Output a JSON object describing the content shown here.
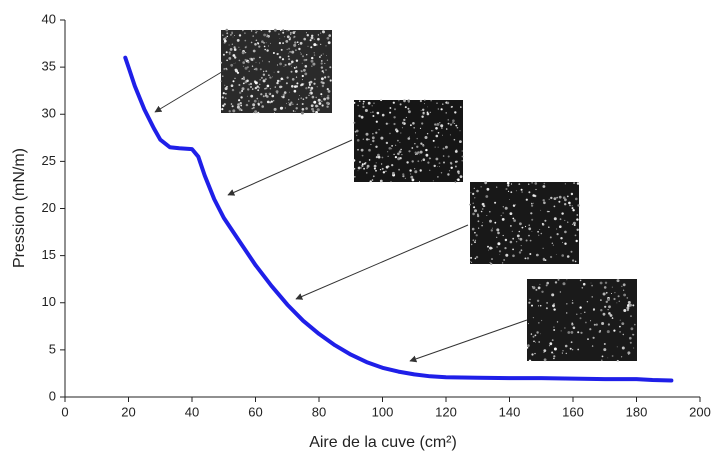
{
  "chart_data": {
    "type": "line",
    "x_label": "Aire de la cuve (cm²)",
    "y_label": "Pression (mN/m)",
    "x": [
      19,
      20,
      22,
      25,
      28,
      30,
      33,
      36,
      40,
      42,
      44,
      47,
      50,
      55,
      60,
      65,
      70,
      75,
      80,
      85,
      90,
      95,
      100,
      105,
      110,
      115,
      120,
      130,
      140,
      150,
      160,
      170,
      180,
      185,
      191
    ],
    "series": [
      {
        "color": "#1f1fe8",
        "values": [
          36,
          35,
          33,
          30.5,
          28.5,
          27.3,
          26.5,
          26.4,
          26.3,
          25.5,
          23.5,
          21,
          19,
          16.5,
          14,
          11.8,
          9.8,
          8.1,
          6.7,
          5.5,
          4.5,
          3.7,
          3.1,
          2.7,
          2.4,
          2.2,
          2.1,
          2.05,
          2.0,
          2.0,
          1.95,
          1.9,
          1.9,
          1.8,
          1.75
        ]
      }
    ],
    "xlim": [
      0,
      200
    ],
    "xticks": [
      0,
      20,
      40,
      60,
      80,
      100,
      120,
      140,
      160,
      180,
      200
    ],
    "ylim": [
      0,
      40
    ],
    "yticks": [
      0,
      5,
      10,
      15,
      20,
      25,
      30,
      35,
      40
    ]
  }
}
